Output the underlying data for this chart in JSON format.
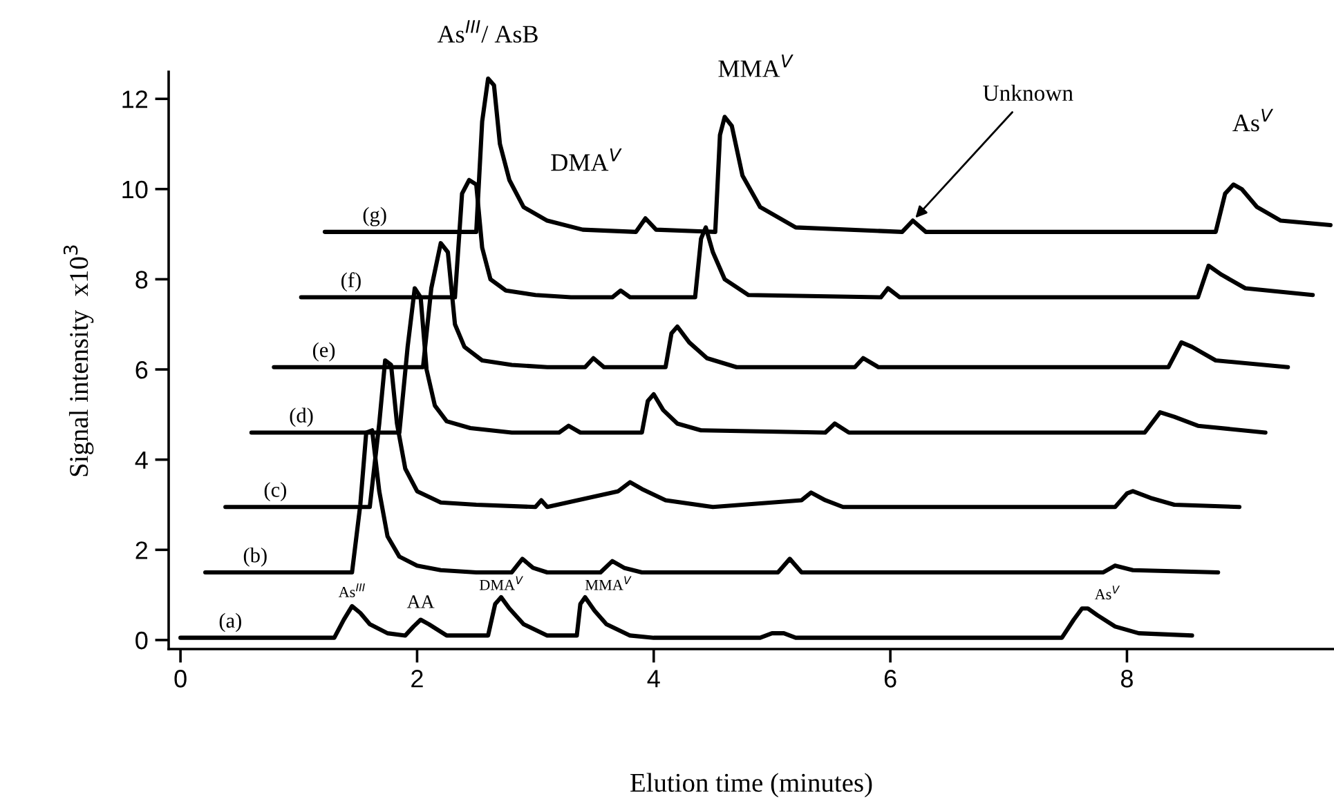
{
  "chart_data": {
    "type": "line",
    "xlabel": "Elution time (minutes)",
    "ylabel": "Signal intensity  x10$^{3}$",
    "xlim": [
      -0.1,
      9.75
    ],
    "ylim": [
      -0.2,
      12.6
    ],
    "xticks": [
      0,
      2,
      4,
      6,
      8
    ],
    "yticks": [
      0,
      2,
      4,
      6,
      8,
      10,
      12
    ],
    "grid": false,
    "legend": false,
    "marker": "none",
    "line_style": "solid",
    "series": [
      {
        "name": "(a)",
        "color": "#000000",
        "x": [
          0.0,
          1.3,
          1.38,
          1.45,
          1.52,
          1.6,
          1.75,
          1.9,
          1.97,
          2.03,
          2.1,
          2.25,
          2.6,
          2.66,
          2.71,
          2.78,
          2.9,
          3.1,
          3.35,
          3.38,
          3.42,
          3.5,
          3.6,
          3.8,
          4.0,
          4.9,
          5.0,
          5.1,
          5.2,
          7.45,
          7.55,
          7.62,
          7.67,
          7.75,
          7.9,
          8.1,
          8.55
        ],
        "values": [
          0.05,
          0.05,
          0.45,
          0.75,
          0.6,
          0.35,
          0.15,
          0.1,
          0.3,
          0.45,
          0.35,
          0.1,
          0.1,
          0.8,
          0.95,
          0.7,
          0.35,
          0.1,
          0.1,
          0.8,
          0.95,
          0.65,
          0.35,
          0.1,
          0.05,
          0.05,
          0.15,
          0.15,
          0.05,
          0.05,
          0.45,
          0.7,
          0.7,
          0.55,
          0.3,
          0.15,
          0.1
        ]
      },
      {
        "name": "(b)",
        "color": "#000000",
        "x": [
          0.21,
          1.45,
          1.52,
          1.57,
          1.62,
          1.68,
          1.75,
          1.85,
          2.0,
          2.2,
          2.5,
          2.8,
          2.89,
          2.98,
          3.1,
          3.55,
          3.65,
          3.75,
          3.9,
          5.05,
          5.15,
          5.25,
          7.8,
          7.9,
          8.05,
          8.77
        ],
        "values": [
          1.5,
          1.5,
          3.0,
          4.6,
          4.65,
          3.3,
          2.3,
          1.85,
          1.65,
          1.55,
          1.5,
          1.5,
          1.8,
          1.6,
          1.5,
          1.5,
          1.75,
          1.6,
          1.5,
          1.5,
          1.8,
          1.5,
          1.5,
          1.65,
          1.55,
          1.5
        ]
      },
      {
        "name": "(c)",
        "color": "#000000",
        "x": [
          0.38,
          1.6,
          1.68,
          1.73,
          1.78,
          1.83,
          1.9,
          2.0,
          2.2,
          2.5,
          3.0,
          3.05,
          3.1,
          3.7,
          3.8,
          3.9,
          4.1,
          4.5,
          5.25,
          5.33,
          5.45,
          5.6,
          7.9,
          8.0,
          8.05,
          8.2,
          8.4,
          8.95
        ],
        "values": [
          2.95,
          2.95,
          4.8,
          6.2,
          6.1,
          4.8,
          3.8,
          3.3,
          3.05,
          3.0,
          2.95,
          3.1,
          2.95,
          3.3,
          3.5,
          3.35,
          3.1,
          2.95,
          3.1,
          3.27,
          3.1,
          2.95,
          2.95,
          3.25,
          3.3,
          3.15,
          3.0,
          2.95
        ]
      },
      {
        "name": "(d)",
        "color": "#000000",
        "x": [
          0.6,
          1.85,
          1.92,
          1.98,
          2.03,
          2.08,
          2.15,
          2.25,
          2.45,
          2.8,
          3.2,
          3.28,
          3.38,
          3.9,
          3.95,
          4.0,
          4.08,
          4.2,
          4.4,
          5.45,
          5.53,
          5.65,
          8.15,
          8.28,
          8.4,
          8.6,
          9.17
        ],
        "values": [
          4.6,
          4.6,
          6.5,
          7.8,
          7.6,
          6.0,
          5.2,
          4.85,
          4.7,
          4.6,
          4.6,
          4.75,
          4.6,
          4.6,
          5.3,
          5.45,
          5.1,
          4.8,
          4.65,
          4.6,
          4.8,
          4.6,
          4.6,
          5.05,
          4.95,
          4.75,
          4.6
        ]
      },
      {
        "name": "(e)",
        "color": "#000000",
        "x": [
          0.79,
          2.05,
          2.12,
          2.2,
          2.26,
          2.32,
          2.4,
          2.55,
          2.8,
          3.1,
          3.42,
          3.49,
          3.58,
          4.1,
          4.15,
          4.2,
          4.3,
          4.45,
          4.7,
          5.7,
          5.77,
          5.9,
          8.35,
          8.46,
          8.55,
          8.75,
          9.36
        ],
        "values": [
          6.05,
          6.05,
          7.8,
          8.8,
          8.6,
          7.0,
          6.5,
          6.2,
          6.1,
          6.05,
          6.05,
          6.25,
          6.05,
          6.05,
          6.8,
          6.95,
          6.6,
          6.25,
          6.05,
          6.05,
          6.25,
          6.05,
          6.05,
          6.6,
          6.5,
          6.2,
          6.05
        ]
      },
      {
        "name": "(f)",
        "color": "#000000",
        "x": [
          1.02,
          2.32,
          2.38,
          2.44,
          2.5,
          2.55,
          2.62,
          2.75,
          3.0,
          3.3,
          3.65,
          3.72,
          3.8,
          4.35,
          4.4,
          4.44,
          4.5,
          4.6,
          4.8,
          5.92,
          5.98,
          6.08,
          8.6,
          8.69,
          8.8,
          9.0,
          9.57
        ],
        "values": [
          7.6,
          7.6,
          9.9,
          10.2,
          10.1,
          8.7,
          8.0,
          7.75,
          7.65,
          7.6,
          7.6,
          7.75,
          7.6,
          7.6,
          8.9,
          9.15,
          8.6,
          8.0,
          7.65,
          7.6,
          7.8,
          7.6,
          7.6,
          8.3,
          8.1,
          7.8,
          7.65
        ]
      },
      {
        "name": "(g)",
        "color": "#000000",
        "x": [
          1.22,
          2.5,
          2.55,
          2.6,
          2.65,
          2.7,
          2.78,
          2.9,
          3.1,
          3.4,
          3.85,
          3.93,
          4.02,
          4.52,
          4.56,
          4.6,
          4.66,
          4.75,
          4.9,
          5.2,
          6.1,
          6.19,
          6.3,
          8.75,
          8.83,
          8.9,
          8.97,
          9.1,
          9.3,
          9.72
        ],
        "values": [
          9.05,
          9.05,
          11.5,
          12.45,
          12.3,
          11.0,
          10.2,
          9.6,
          9.3,
          9.1,
          9.05,
          9.35,
          9.1,
          9.05,
          11.2,
          11.6,
          11.4,
          10.3,
          9.6,
          9.15,
          9.05,
          9.3,
          9.05,
          9.05,
          9.9,
          10.1,
          10.0,
          9.6,
          9.3,
          9.2
        ]
      }
    ],
    "annotations": [
      {
        "text": "As$^{III}$/ AsB",
        "x": 2.6,
        "y": 12.45
      },
      {
        "text": "MMA$^{V}$",
        "x": 4.6,
        "y": 11.6
      },
      {
        "text": "DMA$^{V}$",
        "x": 3.93,
        "y": 9.35
      },
      {
        "text": "Unknown",
        "x": 6.19,
        "y": 9.3
      },
      {
        "text": "As$^{V}$",
        "x": 8.9,
        "y": 10.1
      },
      {
        "text": "As$^{III}$",
        "x": 1.45,
        "y": 0.75
      },
      {
        "text": "AA",
        "x": 2.03,
        "y": 0.45
      },
      {
        "text": "DMA$^{V}$",
        "x": 2.71,
        "y": 0.95
      },
      {
        "text": "MMA$^{V}$",
        "x": 3.42,
        "y": 0.95
      },
      {
        "text": "As$^{V}$",
        "x": 7.67,
        "y": 0.7
      }
    ]
  }
}
